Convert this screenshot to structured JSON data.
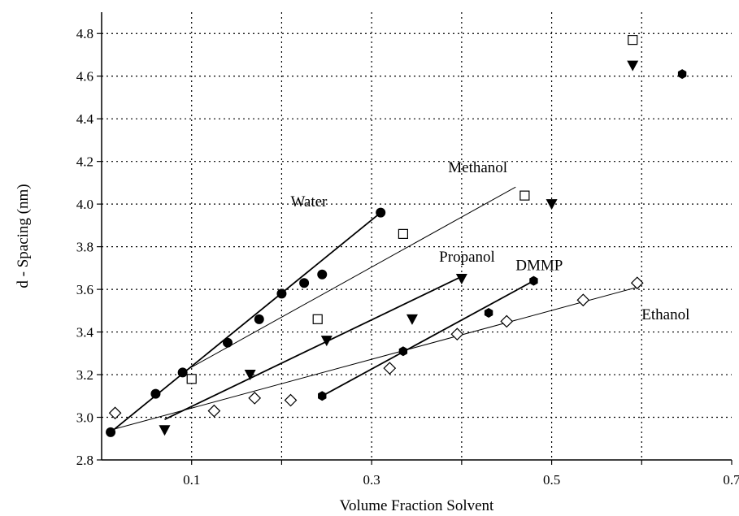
{
  "chart_data": {
    "type": "scatter",
    "title": "",
    "xlabel": "Volume Fraction Solvent",
    "ylabel": "d - Spacing  (nm)",
    "xlim": [
      0.0,
      0.7
    ],
    "ylim": [
      2.8,
      4.9
    ],
    "xticks": [
      0.1,
      0.3,
      0.5,
      0.7
    ],
    "yticks": [
      2.8,
      3.0,
      3.2,
      3.4,
      3.6,
      3.8,
      4.0,
      4.2,
      4.4,
      4.6,
      4.8
    ],
    "grid": true,
    "legend": "inline labels",
    "series": [
      {
        "name": "Water",
        "marker": "filled-circle",
        "points": [
          [
            0.01,
            2.93
          ],
          [
            0.06,
            3.11
          ],
          [
            0.09,
            3.21
          ],
          [
            0.14,
            3.35
          ],
          [
            0.175,
            3.46
          ],
          [
            0.2,
            3.58
          ],
          [
            0.225,
            3.63
          ],
          [
            0.245,
            3.67
          ],
          [
            0.31,
            3.96
          ]
        ],
        "fit": [
          [
            0.01,
            2.93
          ],
          [
            0.31,
            3.96
          ]
        ]
      },
      {
        "name": "Methanol",
        "marker": "open-square",
        "points": [
          [
            0.1,
            3.18
          ],
          [
            0.24,
            3.46
          ],
          [
            0.335,
            3.86
          ],
          [
            0.47,
            4.04
          ],
          [
            0.59,
            4.77
          ]
        ],
        "fit": [
          [
            0.085,
            3.2
          ],
          [
            0.46,
            4.08
          ]
        ]
      },
      {
        "name": "Propanol",
        "marker": "filled-triangle-down",
        "points": [
          [
            0.07,
            2.94
          ],
          [
            0.165,
            3.2
          ],
          [
            0.25,
            3.36
          ],
          [
            0.345,
            3.46
          ],
          [
            0.4,
            3.65
          ],
          [
            0.5,
            4.0
          ],
          [
            0.59,
            4.65
          ]
        ],
        "fit": [
          [
            0.07,
            2.99
          ],
          [
            0.4,
            3.66
          ]
        ]
      },
      {
        "name": "DMMP",
        "marker": "filled-hexagon",
        "points": [
          [
            0.245,
            3.1
          ],
          [
            0.335,
            3.31
          ],
          [
            0.43,
            3.49
          ],
          [
            0.48,
            3.64
          ],
          [
            0.645,
            4.61
          ]
        ],
        "fit": [
          [
            0.245,
            3.1
          ],
          [
            0.48,
            3.64
          ]
        ]
      },
      {
        "name": "Ethanol",
        "marker": "open-diamond",
        "points": [
          [
            0.015,
            3.02
          ],
          [
            0.125,
            3.03
          ],
          [
            0.17,
            3.09
          ],
          [
            0.21,
            3.08
          ],
          [
            0.32,
            3.23
          ],
          [
            0.395,
            3.39
          ],
          [
            0.45,
            3.45
          ],
          [
            0.535,
            3.55
          ],
          [
            0.595,
            3.63
          ]
        ],
        "fit": [
          [
            0.01,
            2.94
          ],
          [
            0.595,
            3.61
          ]
        ]
      }
    ],
    "annotations": [
      {
        "text": "Water",
        "x": 0.21,
        "y": 3.99
      },
      {
        "text": "Methanol",
        "x": 0.385,
        "y": 4.15
      },
      {
        "text": "Propanol",
        "x": 0.375,
        "y": 3.73
      },
      {
        "text": "DMMP",
        "x": 0.46,
        "y": 3.69
      },
      {
        "text": "Ethanol",
        "x": 0.6,
        "y": 3.46
      }
    ]
  }
}
